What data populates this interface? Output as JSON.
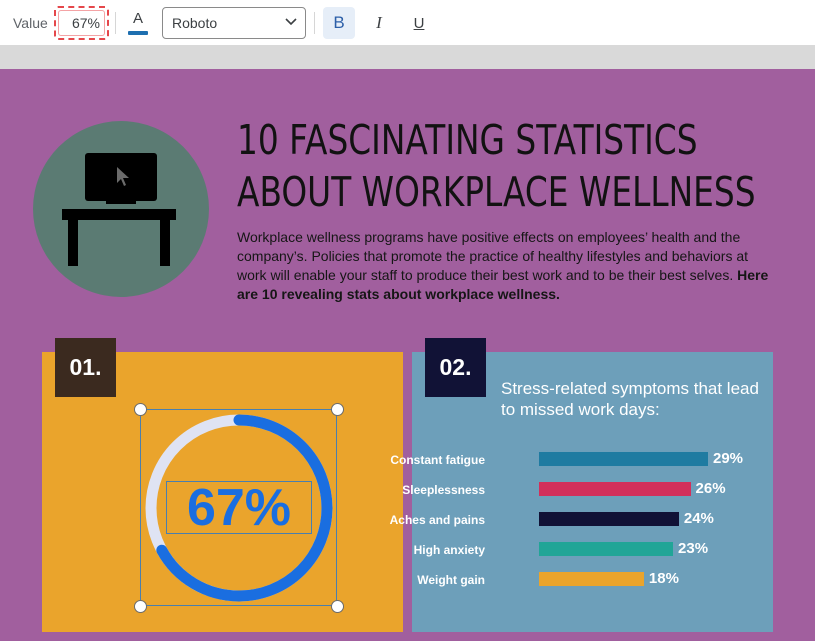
{
  "toolbar": {
    "value_label": "Value",
    "value": "67%",
    "text_color_letter": "A",
    "text_color": "#1e6fb0",
    "font": "Roboto",
    "bold_label": "B",
    "italic_label": "I",
    "underline_label": "U"
  },
  "header": {
    "title_line1": "10 FASCINATING STATISTICS",
    "title_line2": "ABOUT WORKPLACE WELLNESS",
    "intro": "Workplace wellness programs have positive effects on employees’ health and the company’s. Policies that promote the practice of healthy lifestyles and behaviors at work will enable your staff to produce their best work and to be their best selves.",
    "intro_bold": "Here are 10 revealing stats about workplace wellness."
  },
  "cards": [
    {
      "number": "01.",
      "percent_text": "67%",
      "percent_value": 0.67,
      "ring_color": "#1a6ee0",
      "track_color": "#dfe3f3"
    },
    {
      "number": "02.",
      "title": "Stress-related symptoms that lead to missed work days:"
    }
  ],
  "chart_data": {
    "type": "bar",
    "orientation": "horizontal",
    "categories": [
      "Constant fatigue",
      "Sleeplessness",
      "Aches and pains",
      "High anxiety",
      "Weight gain"
    ],
    "values": [
      29,
      26,
      24,
      23,
      18
    ],
    "value_labels": [
      "29%",
      "26%",
      "24%",
      "23%",
      "18%"
    ],
    "colors": [
      "#1f7ba1",
      "#d22f5b",
      "#111236",
      "#21a597",
      "#eaa42c"
    ],
    "title": "Stress-related symptoms that lead to missed work days:"
  }
}
